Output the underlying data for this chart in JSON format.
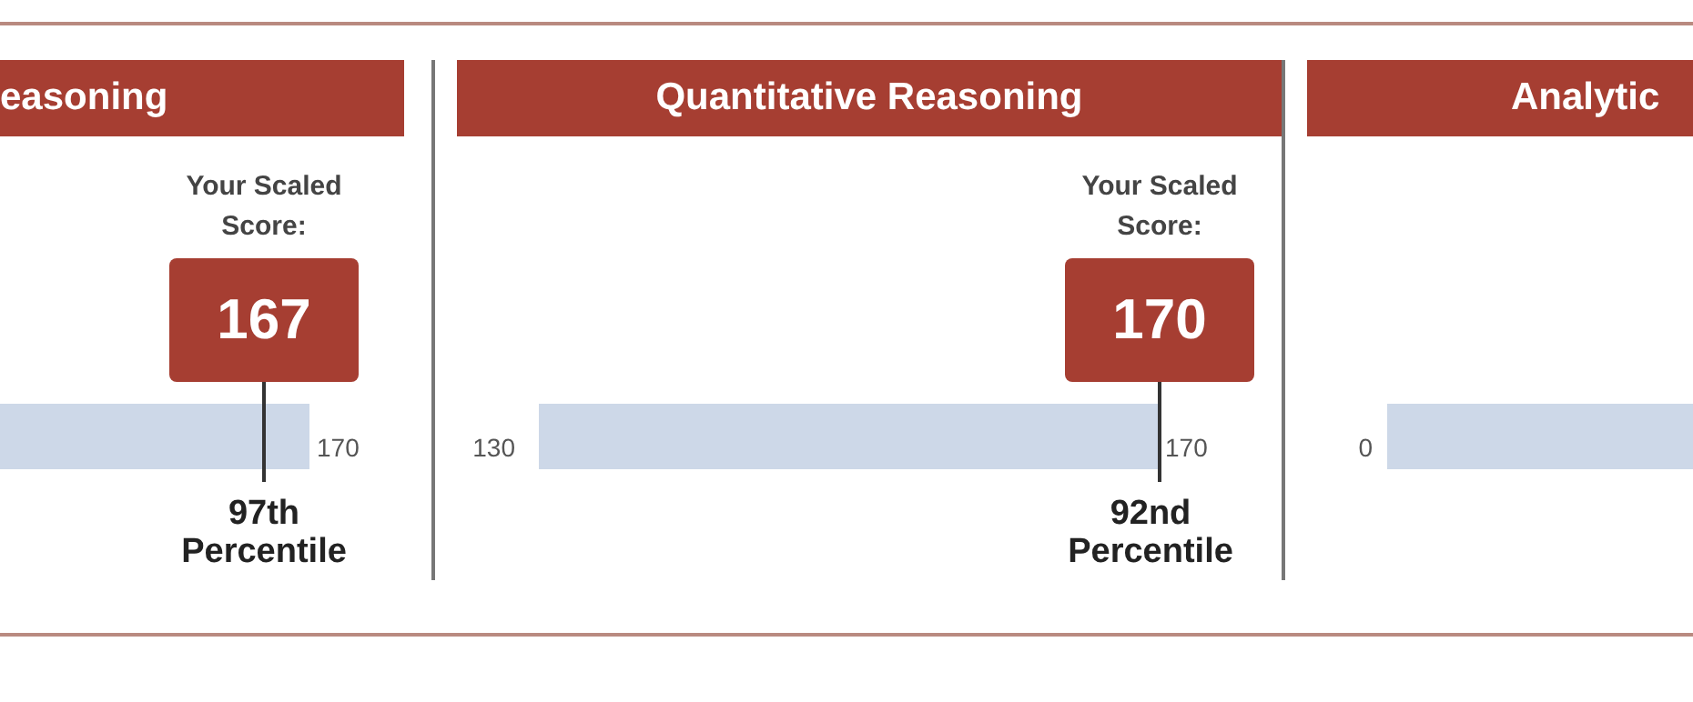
{
  "chart_data": [
    {
      "type": "other",
      "title": "easoning",
      "categories": [
        null
      ],
      "values": [
        167
      ],
      "data_labels": true,
      "annotations": [
        "170",
        "Your Scaled Score:",
        "97th\nPercentile"
      ]
    },
    {
      "type": "other",
      "title": "Quantitative Reasoning",
      "categories": [
        null
      ],
      "values": [
        170
      ],
      "data_labels": true,
      "annotations": [
        "130",
        "170",
        "Your Scaled Score:",
        "92nd\nPercentile"
      ]
    },
    {
      "type": "other",
      "title": "Analytic",
      "annotations": [
        "0"
      ]
    }
  ]
}
